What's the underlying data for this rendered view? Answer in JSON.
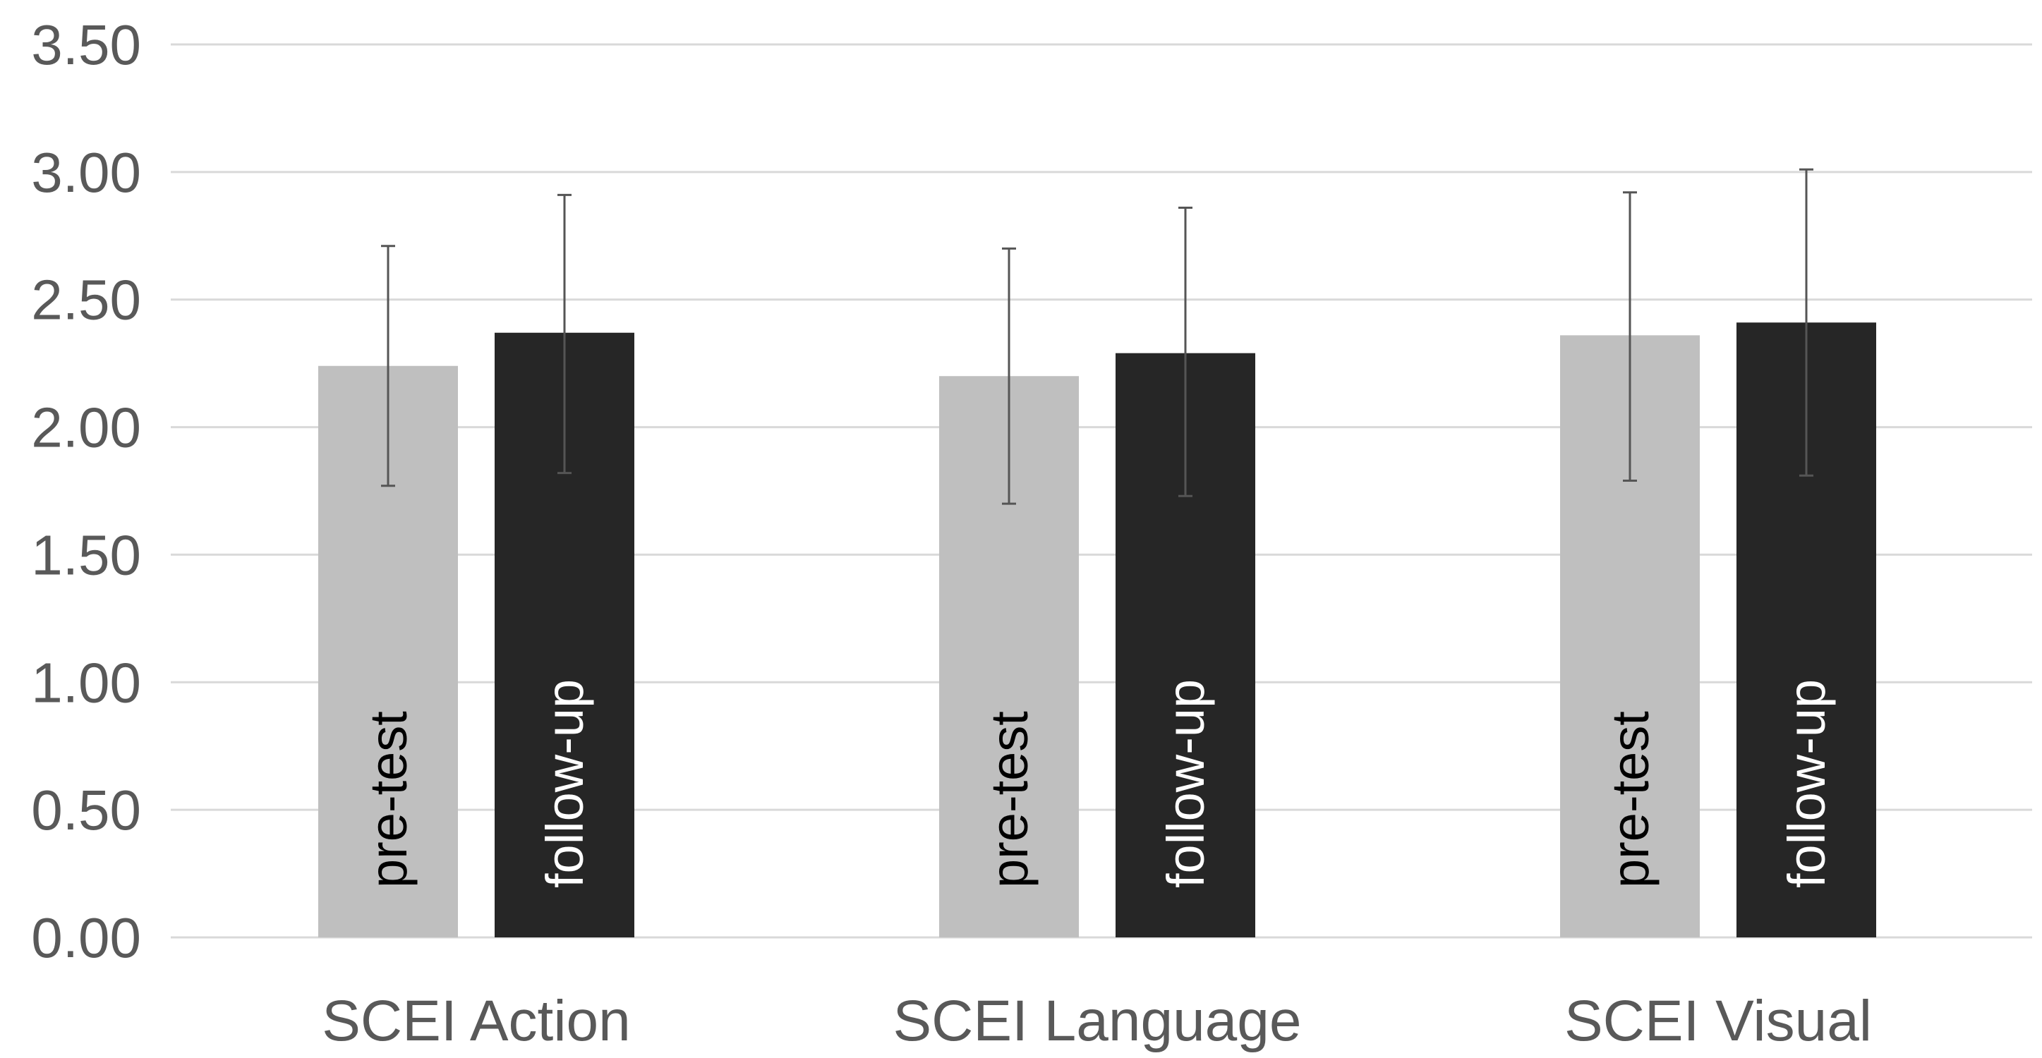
{
  "chart_data": {
    "type": "bar",
    "title": "",
    "xlabel": "",
    "ylabel": "",
    "categories": [
      "SCEI Action",
      "SCEI Language",
      "SCEI Visual"
    ],
    "ylim": [
      0,
      3.5
    ],
    "yticks": [
      "0.00",
      "0.50",
      "1.00",
      "1.50",
      "2.00",
      "2.50",
      "3.00",
      "3.50"
    ],
    "grid": true,
    "legend": "none",
    "series": [
      {
        "name": "pre-test",
        "color": "#bfbfbf",
        "label_color": "#000000",
        "values": [
          2.24,
          2.2,
          2.36
        ],
        "error_low": [
          1.77,
          1.7,
          1.79
        ],
        "error_high": [
          2.71,
          2.7,
          2.92
        ]
      },
      {
        "name": "follow-up",
        "color": "#262626",
        "label_color": "#ffffff",
        "values": [
          2.37,
          2.29,
          2.41
        ],
        "error_low": [
          1.82,
          1.73,
          1.81
        ],
        "error_high": [
          2.91,
          2.86,
          3.01
        ]
      }
    ]
  }
}
